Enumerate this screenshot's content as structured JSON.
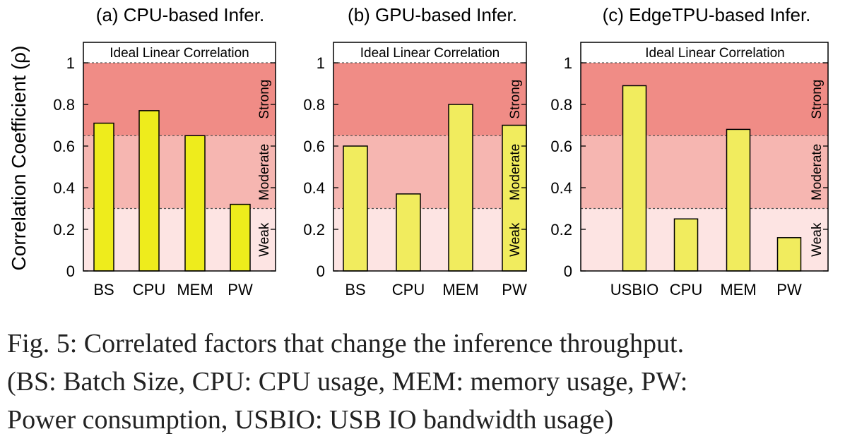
{
  "ylabel": "Correlation Coefficient (ρ)",
  "y_ticks": [
    "0",
    "0.2",
    "0.4",
    "0.6",
    "0.8",
    "1"
  ],
  "ideal_label": "Ideal Linear Correlation",
  "bands": [
    {
      "label": "Weak",
      "from": 0,
      "to": 0.3
    },
    {
      "label": "Moderate",
      "from": 0.3,
      "to": 0.65
    },
    {
      "label": "Strong",
      "from": 0.65,
      "to": 1.0
    }
  ],
  "colors": {
    "weak": "#fde4e3",
    "moderate": "#f6b6b1",
    "strong": "#f08c86",
    "bar_a": "#eeec1c",
    "bar_bc": "#f1ec5e"
  },
  "chart_data": [
    {
      "type": "bar",
      "title": "(a) CPU-based Infer.",
      "categories": [
        "BS",
        "CPU",
        "MEM",
        "PW"
      ],
      "values": [
        0.71,
        0.77,
        0.65,
        0.32
      ],
      "ylim": [
        0,
        1.1
      ]
    },
    {
      "type": "bar",
      "title": "(b) GPU-based Infer.",
      "categories": [
        "BS",
        "CPU",
        "MEM",
        "PW"
      ],
      "values": [
        0.6,
        0.37,
        0.8,
        0.7
      ],
      "ylim": [
        0,
        1.1
      ]
    },
    {
      "type": "bar",
      "title": "(c) EdgeTPU-based Infer.",
      "categories": [
        "USBIO",
        "CPU",
        "MEM",
        "PW"
      ],
      "values": [
        0.89,
        0.25,
        0.68,
        0.16
      ],
      "ylim": [
        0,
        1.1
      ]
    }
  ],
  "caption": {
    "line1": "Fig. 5: Correlated factors that change the inference throughput.",
    "line2": "(BS: Batch Size, CPU: CPU usage, MEM: memory usage, PW:",
    "line3": "Power consumption, USBIO: USB IO bandwidth usage)"
  }
}
